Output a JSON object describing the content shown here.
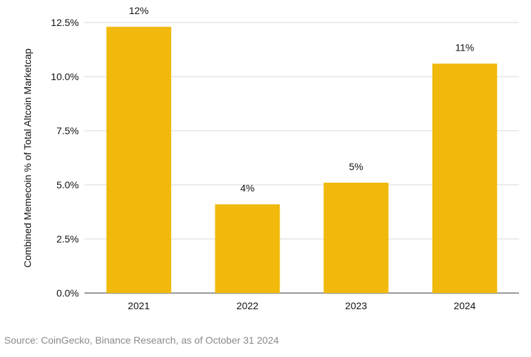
{
  "chart_data": {
    "type": "bar",
    "categories": [
      "2021",
      "2022",
      "2023",
      "2024"
    ],
    "values": [
      12.3,
      4.1,
      5.1,
      10.6
    ],
    "data_labels": [
      "12%",
      "4%",
      "5%",
      "11%"
    ],
    "ylabel": "Combined Memecoin % of Total Altcoin Marketcap",
    "xlabel": "",
    "ylim": [
      0,
      12.5
    ],
    "yticks": [
      0,
      2.5,
      5,
      7.5,
      10,
      12.5
    ],
    "ytick_labels": [
      "0.0%",
      "2.5%",
      "5.0%",
      "7.5%",
      "10.0%",
      "12.5%"
    ],
    "grid": "horizontal",
    "bar_color": "#F0B90B",
    "grid_color": "#d9d9d9"
  },
  "source_note": "Source: CoinGecko, Binance Research, as of October 31 2024"
}
